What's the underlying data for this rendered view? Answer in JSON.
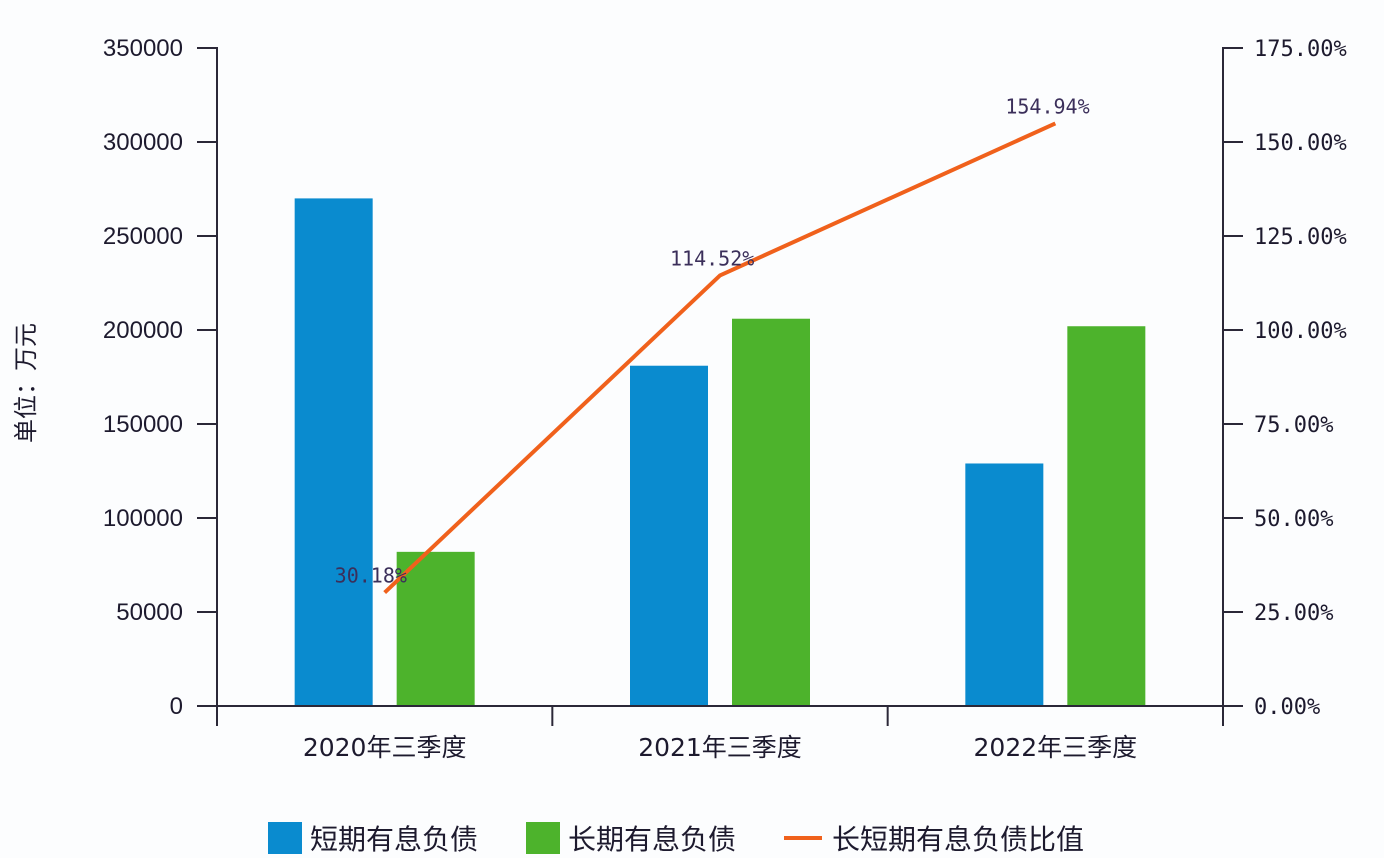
{
  "chart_data": {
    "type": "bar+line",
    "title": "",
    "categories": [
      "2020年三季度",
      "2021年三季度",
      "2022年三季度"
    ],
    "series": [
      {
        "name": "短期有息负债",
        "type": "bar",
        "axis": "left",
        "color": "#0a8bcf",
        "values": [
          270000,
          181000,
          129000
        ]
      },
      {
        "name": "长期有息负债",
        "type": "bar",
        "axis": "left",
        "color": "#4db32c",
        "values": [
          82000,
          206000,
          202000
        ]
      },
      {
        "name": "长短期有息负债比值",
        "type": "line",
        "axis": "right",
        "color": "#f0611c",
        "values": [
          30.18,
          114.52,
          154.94
        ],
        "labels": [
          "30.18%",
          "114.52%",
          "154.94%"
        ]
      }
    ],
    "ylabel": "单位：万元",
    "ylim": [
      0,
      350000
    ],
    "yticks": [
      "0",
      "50000",
      "100000",
      "150000",
      "200000",
      "250000",
      "300000",
      "350000"
    ],
    "y2lim": [
      0,
      175
    ],
    "y2ticks": [
      "0.00%",
      "25.00%",
      "50.00%",
      "75.00%",
      "100.00%",
      "125.00%",
      "150.00%",
      "175.00%"
    ],
    "grid": false,
    "legend_position": "bottom"
  },
  "legend": {
    "items": [
      {
        "label": "短期有息负债",
        "color": "#0a8bcf",
        "kind": "box"
      },
      {
        "label": "长期有息负债",
        "color": "#4db32c",
        "kind": "box"
      },
      {
        "label": "长短期有息负债比值",
        "color": "#f0611c",
        "kind": "line"
      }
    ]
  }
}
